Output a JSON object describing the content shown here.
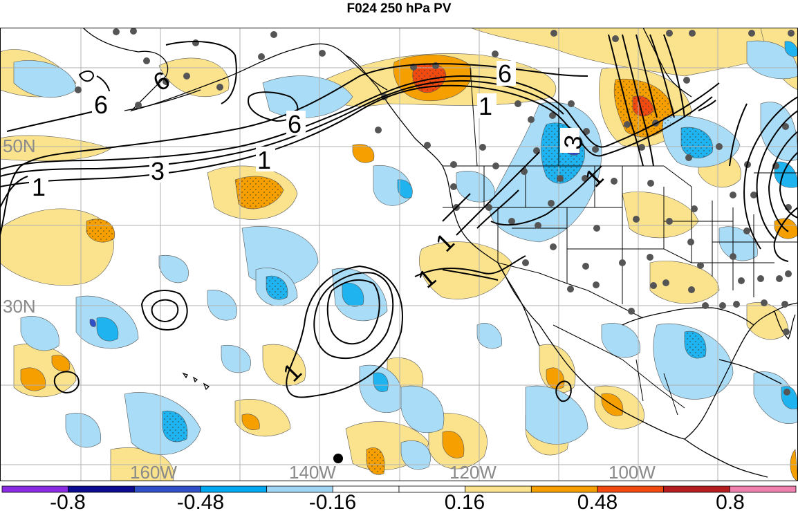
{
  "title": "F024 250 hPa PV",
  "lat_labels": [
    "50N",
    "30N"
  ],
  "lon_labels": [
    "160W",
    "140W",
    "120W",
    "100W"
  ],
  "contour_labels": [
    "6",
    "6",
    "6",
    "3",
    "1",
    "1",
    "1",
    "1",
    "1",
    "3",
    "1",
    "1",
    "6"
  ],
  "colorbar": {
    "colors": [
      "#8a2be2",
      "#0b0b8f",
      "#3050c8",
      "#00a8f0",
      "#9fd6f5",
      "#ffffff",
      "#ffffff",
      "#fbe38e",
      "#f5a000",
      "#f04a10",
      "#b41e1e",
      "#f080b0"
    ],
    "labels": [
      "-0.8",
      "-0.48",
      "-0.16",
      "0.16",
      "0.48",
      "0.8"
    ]
  },
  "palette": {
    "pos_weak": "#fbe38e",
    "pos_mid": "#f5a000",
    "pos_strong": "#f04a10",
    "neg_weak": "#a9dcf6",
    "neg_mid": "#1fb3f0",
    "neg_strong": "#3050c8",
    "neg_extreme": "#5b2bd0"
  }
}
